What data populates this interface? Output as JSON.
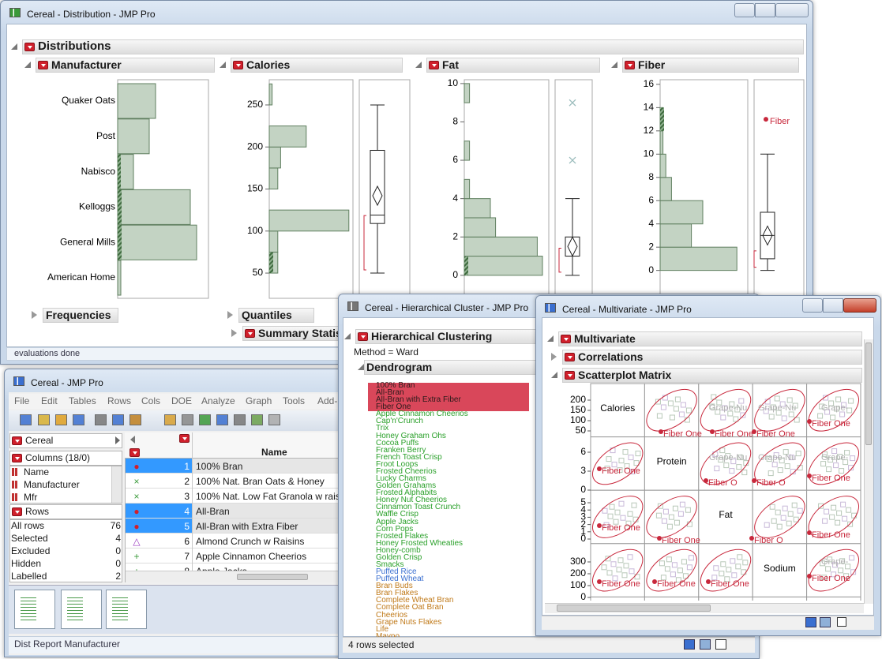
{
  "distribution_window": {
    "title": "Cereal - Distribution - JMP Pro",
    "report_title": "Distributions",
    "manufacturer": {
      "title": "Manufacturer",
      "categories": [
        "Quaker Oats",
        "Post",
        "Nabisco",
        "Kelloggs",
        "General Mills",
        "American Home"
      ],
      "counts": [
        12,
        10,
        5,
        23,
        25,
        1
      ]
    },
    "calories": {
      "title": "Calories",
      "bins": [
        50,
        75,
        100,
        125,
        150,
        175,
        200,
        225,
        250,
        275
      ],
      "counts": [
        3,
        3,
        28,
        0,
        3,
        4,
        13,
        0,
        1
      ],
      "ylim": [
        20,
        280
      ],
      "yticks": [
        50,
        100,
        150,
        200,
        250
      ],
      "box": {
        "min": 50,
        "q1": 109,
        "median": 119,
        "q3": 196,
        "max": 250,
        "mean": 142
      }
    },
    "fat": {
      "title": "Fat",
      "bins": [
        0,
        1,
        2,
        3,
        4,
        5,
        6,
        7,
        8,
        9,
        10
      ],
      "counts": [
        30,
        28,
        12,
        10,
        2,
        0,
        2,
        0,
        0,
        2
      ],
      "ylim": [
        -1.2,
        10.2
      ],
      "yticks": [
        0,
        2,
        4,
        6,
        8,
        10
      ],
      "box": {
        "min": 0,
        "q1": 1,
        "median": 1,
        "q3": 2,
        "max": 4,
        "mean": 1.5
      },
      "outliers": [
        6,
        9
      ]
    },
    "fiber": {
      "title": "Fiber",
      "bins": [
        0,
        2,
        4,
        6,
        8,
        10,
        12,
        14,
        16
      ],
      "counts": [
        27,
        11,
        15,
        4,
        2,
        1,
        1,
        0
      ],
      "ylim": [
        -2.4,
        16.4
      ],
      "yticks": [
        0,
        2,
        4,
        6,
        8,
        10,
        12,
        14,
        16
      ],
      "box": {
        "min": 0,
        "q1": 1,
        "median": 3,
        "q3": 5,
        "max": 10,
        "mean": 3
      },
      "outliers": [
        13
      ],
      "outlier_label": "Fiber"
    },
    "frequencies": "Frequencies",
    "quantiles": "Quantiles",
    "summary_statistics": "Summary Statis",
    "status": "evaluations done"
  },
  "data_table_window": {
    "title": "Cereal - JMP Pro",
    "menu": [
      "File",
      "Edit",
      "Tables",
      "Rows",
      "Cols",
      "DOE",
      "Analyze",
      "Graph",
      "Tools",
      "Add-"
    ],
    "table_name": "Cereal",
    "columns_header": "Columns (18/0)",
    "columns": [
      "Name",
      "Manufacturer",
      "Mfr"
    ],
    "rows_header": "Rows",
    "row_stats": [
      [
        "All rows",
        76
      ],
      [
        "Selected",
        4
      ],
      [
        "Excluded",
        0
      ],
      [
        "Hidden",
        0
      ],
      [
        "Labelled",
        2
      ]
    ],
    "column_header": "Name",
    "rows": [
      [
        1,
        "100% Bran"
      ],
      [
        2,
        "100% Nat. Bran Oats & Honey"
      ],
      [
        3,
        "100% Nat. Low Fat Granola w raisi"
      ],
      [
        4,
        "All-Bran"
      ],
      [
        5,
        "All-Bran with Extra Fiber"
      ],
      [
        6,
        "Almond Crunch w Raisins"
      ],
      [
        7,
        "Apple Cinnamon Cheerios"
      ],
      [
        8,
        "Apple Jacks"
      ]
    ],
    "status": "Dist Report Manufacturer"
  },
  "cluster_window": {
    "title": "Cereal - Hierarchical Cluster - JMP Pro",
    "report_title": "Hierarchical Clustering",
    "method": "Method = Ward",
    "dendrogram": "Dendrogram",
    "clusters": [
      {
        "color": "#2a1a1a",
        "items": [
          "100% Bran",
          "All-Bran",
          "All-Bran with Extra Fiber",
          "Fiber One"
        ]
      },
      {
        "color": "#2aa02a",
        "items": [
          "Apple Cinnamon Cheerios",
          "Cap'n'Crunch",
          "Trix",
          "Honey Graham Ohs",
          "Cocoa Puffs",
          "Franken Berry",
          "French Toast Crisp",
          "Froot Loops",
          "Frosted Cheerios",
          "Lucky Charms",
          "Golden Grahams",
          "Frosted Alphabits",
          "Honey Nut Cheerios",
          "Cinnamon Toast Crunch",
          "Waffle Crisp",
          "Apple Jacks",
          "Corn Pops",
          "Frosted Flakes",
          "Honey Frosted Wheaties",
          "Honey-comb",
          "Golden Crisp",
          "Smacks"
        ]
      },
      {
        "color": "#3a6fd0",
        "items": [
          "Puffed Rice",
          "Puffed Wheat"
        ]
      },
      {
        "color": "#c07a1a",
        "items": [
          "Bran Buds",
          "Bran Flakes",
          "Complete Wheat Bran",
          "Complete Oat Bran",
          "Cheerios",
          "Grape Nuts Flakes",
          "Life",
          "Maypo"
        ]
      }
    ],
    "status": "4 rows selected"
  },
  "multivariate_window": {
    "title": "Cereal - Multivariate - JMP Pro",
    "report_title": "Multivariate",
    "correlations": "Correlations",
    "scatterplot_matrix": "Scatterplot Matrix",
    "variables": [
      "Calories",
      "Protein",
      "Fat",
      "Sodium"
    ],
    "axis_ticks": [
      [
        200,
        150,
        100,
        50
      ],
      [
        6,
        3,
        0
      ],
      [
        5,
        4,
        3,
        2,
        1,
        0
      ],
      [
        300,
        200,
        100,
        0
      ]
    ],
    "point_labels": [
      "Fiber One",
      "Fiber One",
      "Fiber One",
      "Fiber One",
      "Grape-Nu",
      "Grape-Nu",
      "Grape-",
      "Fiber One",
      "Fiber O",
      "Fiber O",
      "Fiber One",
      "Grape-Nu",
      "Grape-Nu",
      "Grape-",
      "Fiber One",
      "Fiber One",
      "Fiber O",
      "Fiber One",
      "Fiber One",
      "Fiber One",
      "Fiber One",
      "Fiber One",
      "Grape-"
    ]
  }
}
